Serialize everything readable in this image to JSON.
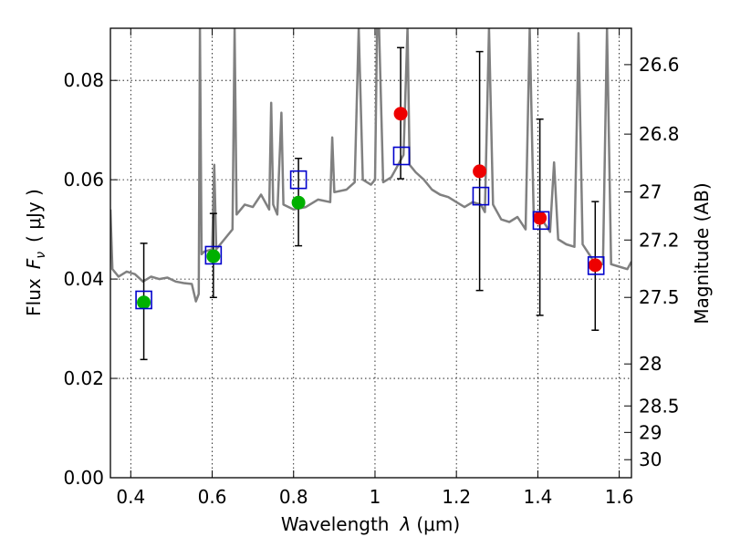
{
  "chart_data": {
    "type": "scatter",
    "xlabel": "Wavelength",
    "xlabel_symbol": "λ",
    "xlabel_unit": "(μm)",
    "ylabel": "Flux",
    "ylabel_symbol": "F",
    "ylabel_subscript": "ν",
    "ylabel_unit": "( μJy )",
    "y2label": "Magnitude (AB)",
    "xlim": [
      0.35,
      1.63
    ],
    "ylim": [
      0.0,
      0.0905
    ],
    "grid": true,
    "x_ticks": [
      0.4,
      0.6,
      0.8,
      1.0,
      1.2,
      1.4,
      1.6
    ],
    "x_tick_labels": [
      "0.4",
      "0.6",
      "0.8",
      "1",
      "1.2",
      "1.4",
      "1.6"
    ],
    "y_ticks": [
      0.0,
      0.02,
      0.04,
      0.06,
      0.08
    ],
    "y_tick_labels": [
      "0.00",
      "0.02",
      "0.04",
      "0.06",
      "0.08"
    ],
    "mag_ticks": [
      26.6,
      26.8,
      27,
      27.2,
      27.5,
      28,
      28.5,
      29,
      30
    ],
    "mag_tick_labels": [
      "26.6",
      "26.8",
      "27",
      "27.2",
      "27.5",
      "28",
      "28.5",
      "29",
      "30"
    ],
    "colors": {
      "spectrum": "#808080",
      "model_square": "#0000cc",
      "green_point": "#00b000",
      "red_point": "#ee0000",
      "error_bar": "#000000"
    },
    "spectrum": [
      [
        0.35,
        0.054
      ],
      [
        0.355,
        0.042
      ],
      [
        0.37,
        0.0405
      ],
      [
        0.39,
        0.0415
      ],
      [
        0.41,
        0.041
      ],
      [
        0.43,
        0.0395
      ],
      [
        0.45,
        0.0405
      ],
      [
        0.47,
        0.04
      ],
      [
        0.49,
        0.0403
      ],
      [
        0.51,
        0.0395
      ],
      [
        0.53,
        0.0392
      ],
      [
        0.55,
        0.039
      ],
      [
        0.56,
        0.0355
      ],
      [
        0.567,
        0.037
      ],
      [
        0.57,
        0.0905
      ],
      [
        0.574,
        0.045
      ],
      [
        0.58,
        0.0455
      ],
      [
        0.6,
        0.046
      ],
      [
        0.605,
        0.063
      ],
      [
        0.61,
        0.046
      ],
      [
        0.63,
        0.048
      ],
      [
        0.65,
        0.05
      ],
      [
        0.655,
        0.0905
      ],
      [
        0.66,
        0.053
      ],
      [
        0.68,
        0.055
      ],
      [
        0.7,
        0.0545
      ],
      [
        0.72,
        0.057
      ],
      [
        0.74,
        0.054
      ],
      [
        0.745,
        0.0755
      ],
      [
        0.75,
        0.055
      ],
      [
        0.76,
        0.053
      ],
      [
        0.77,
        0.0735
      ],
      [
        0.775,
        0.055
      ],
      [
        0.8,
        0.054
      ],
      [
        0.83,
        0.0545
      ],
      [
        0.86,
        0.056
      ],
      [
        0.89,
        0.0555
      ],
      [
        0.895,
        0.0685
      ],
      [
        0.9,
        0.0575
      ],
      [
        0.93,
        0.058
      ],
      [
        0.95,
        0.0595
      ],
      [
        0.96,
        0.0905
      ],
      [
        0.97,
        0.06
      ],
      [
        0.99,
        0.059
      ],
      [
        1.0,
        0.06
      ],
      [
        1.005,
        0.0905
      ],
      [
        1.01,
        0.0905
      ],
      [
        1.02,
        0.0595
      ],
      [
        1.04,
        0.0605
      ],
      [
        1.05,
        0.062
      ],
      [
        1.07,
        0.065
      ],
      [
        1.08,
        0.0905
      ],
      [
        1.085,
        0.063
      ],
      [
        1.1,
        0.0615
      ],
      [
        1.12,
        0.06
      ],
      [
        1.14,
        0.058
      ],
      [
        1.16,
        0.057
      ],
      [
        1.18,
        0.0565
      ],
      [
        1.2,
        0.0555
      ],
      [
        1.22,
        0.0545
      ],
      [
        1.24,
        0.0555
      ],
      [
        1.26,
        0.055
      ],
      [
        1.27,
        0.0535
      ],
      [
        1.28,
        0.0905
      ],
      [
        1.29,
        0.055
      ],
      [
        1.31,
        0.052
      ],
      [
        1.33,
        0.0515
      ],
      [
        1.35,
        0.0525
      ],
      [
        1.37,
        0.05
      ],
      [
        1.38,
        0.0905
      ],
      [
        1.39,
        0.0525
      ],
      [
        1.41,
        0.052
      ],
      [
        1.43,
        0.0495
      ],
      [
        1.44,
        0.0635
      ],
      [
        1.45,
        0.048
      ],
      [
        1.47,
        0.047
      ],
      [
        1.49,
        0.0465
      ],
      [
        1.5,
        0.0895
      ],
      [
        1.51,
        0.047
      ],
      [
        1.53,
        0.0445
      ],
      [
        1.54,
        0.043
      ],
      [
        1.56,
        0.043
      ],
      [
        1.57,
        0.0905
      ],
      [
        1.58,
        0.043
      ],
      [
        1.6,
        0.0425
      ],
      [
        1.62,
        0.042
      ],
      [
        1.63,
        0.0435
      ]
    ],
    "series": [
      {
        "name": "model",
        "marker": "square",
        "x": [
          0.432,
          0.603,
          0.812,
          1.065,
          1.26,
          1.408,
          1.543
        ],
        "y": [
          0.0358,
          0.0448,
          0.06,
          0.0648,
          0.0567,
          0.0518,
          0.0427
        ]
      },
      {
        "name": "observed-green",
        "marker": "circle",
        "x": [
          0.432,
          0.603,
          0.812
        ],
        "y": [
          0.0353,
          0.0446,
          0.0554
        ],
        "yerr_low": [
          0.0238,
          0.0363,
          0.0467
        ],
        "yerr_high": [
          0.0472,
          0.0532,
          0.0643
        ]
      },
      {
        "name": "observed-red",
        "marker": "circle",
        "x": [
          1.063,
          1.257,
          1.405,
          1.541
        ],
        "y": [
          0.0733,
          0.0617,
          0.0523,
          0.0428
        ],
        "yerr_low": [
          0.0602,
          0.0377,
          0.0327,
          0.0297
        ],
        "yerr_high": [
          0.0866,
          0.0858,
          0.0722,
          0.0556
        ]
      }
    ]
  }
}
